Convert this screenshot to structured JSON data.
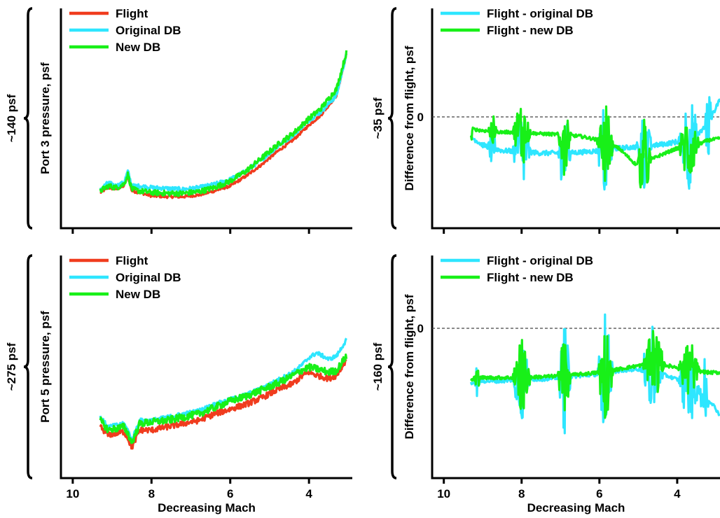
{
  "colors": {
    "flight": "#f03c1e",
    "original": "#2ee6ff",
    "new": "#18f018"
  },
  "chart_data": [
    {
      "id": "p3",
      "type": "line",
      "ylabel": "Port 3 pressure, psf",
      "scale_label": "~140 psf",
      "xlabel": "",
      "xlim": [
        10.3,
        2.9
      ],
      "ylim": [
        0,
        100
      ],
      "xticks": [
        10,
        8,
        6,
        4
      ],
      "xtick_labels": [
        "",
        "",
        "",
        ""
      ],
      "legend": [
        "Flight",
        "Original DB",
        "New DB"
      ],
      "series": [
        {
          "name": "Flight",
          "color_key": "flight",
          "noise": 0.8,
          "x": [
            9.3,
            9.1,
            8.9,
            8.7,
            8.6,
            8.5,
            8.3,
            8.0,
            7.6,
            7.2,
            6.8,
            6.4,
            6.0,
            5.6,
            5.2,
            4.8,
            4.4,
            4.0,
            3.7,
            3.5,
            3.3,
            3.05
          ],
          "y": [
            17,
            20,
            19,
            21,
            27,
            18,
            17,
            15,
            14.5,
            14.5,
            15.5,
            18,
            21,
            27,
            34,
            42,
            49,
            58,
            64,
            70,
            76,
            101
          ]
        },
        {
          "name": "Original DB",
          "color_key": "original",
          "noise": 1.2,
          "x": [
            9.3,
            9.1,
            8.9,
            8.7,
            8.6,
            8.5,
            8.3,
            8.0,
            7.6,
            7.2,
            6.8,
            6.4,
            6.0,
            5.6,
            5.2,
            4.8,
            4.4,
            4.0,
            3.7,
            3.5,
            3.3,
            3.05
          ],
          "y": [
            19,
            23,
            21,
            23,
            30,
            21,
            21,
            20,
            19.5,
            19,
            20,
            22,
            25,
            30,
            37,
            45,
            52,
            61,
            66,
            71,
            76,
            101
          ]
        },
        {
          "name": "New DB",
          "color_key": "new",
          "noise": 1.6,
          "x": [
            9.3,
            9.1,
            8.9,
            8.7,
            8.6,
            8.5,
            8.3,
            8.0,
            7.6,
            7.2,
            6.8,
            6.4,
            6.0,
            5.6,
            5.2,
            4.8,
            4.4,
            4.0,
            3.7,
            3.5,
            3.3,
            3.05
          ],
          "y": [
            18,
            21,
            20,
            22,
            28,
            19,
            18,
            17,
            16.5,
            16.5,
            17.5,
            20,
            24,
            30,
            38,
            46,
            53,
            62,
            68,
            74,
            80,
            102
          ]
        }
      ]
    },
    {
      "id": "d3",
      "type": "line",
      "ylabel": "Difference from flight, psf",
      "scale_label": "~35 psf",
      "zero_label": "0",
      "xlabel": "",
      "xlim": [
        10.3,
        2.9
      ],
      "ylim": [
        -100,
        100
      ],
      "xticks": [
        10,
        8,
        6,
        4
      ],
      "xtick_labels": [
        "",
        "",
        "",
        ""
      ],
      "legend": [
        "Flight - original DB",
        "Flight - new DB"
      ],
      "series": [
        {
          "name": "Flight - original DB",
          "color_key": "original",
          "noise": 3,
          "x": [
            9.3,
            9.0,
            8.5,
            8.0,
            7.5,
            7.0,
            6.5,
            6.0,
            5.5,
            5.0,
            4.5,
            4.0,
            3.5,
            3.2,
            2.9
          ],
          "y": [
            -18,
            -28,
            -35,
            -36,
            -38,
            -38,
            -37,
            -35,
            -32,
            -30,
            -28,
            -24,
            -18,
            0,
            28
          ],
          "bursts": [
            {
              "c": 8.75,
              "w": 0.12,
              "a": 30
            },
            {
              "c": 8.0,
              "w": 0.25,
              "a": 55
            },
            {
              "c": 6.9,
              "w": 0.18,
              "a": 60
            },
            {
              "c": 5.85,
              "w": 0.22,
              "a": 70
            },
            {
              "c": 4.85,
              "w": 0.2,
              "a": 55
            },
            {
              "c": 3.7,
              "w": 0.28,
              "a": 65
            },
            {
              "c": 3.2,
              "w": 0.1,
              "a": 60
            }
          ]
        },
        {
          "name": "Flight - new DB",
          "color_key": "new",
          "noise": 2,
          "x": [
            9.3,
            9.0,
            8.5,
            8.0,
            7.5,
            7.0,
            6.5,
            6.0,
            5.5,
            5.0,
            4.5,
            4.0,
            3.5,
            3.2,
            2.9
          ],
          "y": [
            -8,
            -10,
            -12,
            -12,
            -14,
            -15,
            -17,
            -22,
            -32,
            -55,
            -42,
            -32,
            -28,
            -22,
            -20
          ],
          "bursts": [
            {
              "c": 9.3,
              "w": 0.05,
              "a": 25
            },
            {
              "c": 8.75,
              "w": 0.12,
              "a": 25
            },
            {
              "c": 8.0,
              "w": 0.25,
              "a": 50
            },
            {
              "c": 6.9,
              "w": 0.18,
              "a": 55
            },
            {
              "c": 5.85,
              "w": 0.22,
              "a": 60
            },
            {
              "c": 4.85,
              "w": 0.2,
              "a": 60
            },
            {
              "c": 3.7,
              "w": 0.28,
              "a": 55
            }
          ]
        }
      ]
    },
    {
      "id": "p5",
      "type": "line",
      "ylabel": "Port 5 pressure, psf",
      "scale_label": "~275 psf",
      "xlabel": "Decreasing Mach",
      "xlim": [
        10.3,
        2.9
      ],
      "ylim": [
        0,
        100
      ],
      "xticks": [
        10,
        8,
        6,
        4
      ],
      "xtick_labels": [
        "10",
        "8",
        "6",
        "4"
      ],
      "legend": [
        "Flight",
        "Original DB",
        "New DB"
      ],
      "series": [
        {
          "name": "Flight",
          "color_key": "flight",
          "noise": 1.8,
          "x": [
            9.3,
            9.1,
            8.9,
            8.7,
            8.6,
            8.5,
            8.3,
            8.0,
            7.6,
            7.2,
            6.8,
            6.4,
            6.0,
            5.6,
            5.2,
            4.8,
            4.4,
            4.2,
            4.0,
            3.8,
            3.5,
            3.3,
            3.05
          ],
          "y": [
            24,
            19,
            20,
            21,
            17,
            11,
            22,
            22,
            24,
            26,
            28,
            32,
            35,
            38,
            42,
            47,
            51,
            55,
            58,
            56,
            54,
            56,
            66
          ]
        },
        {
          "name": "Original DB",
          "color_key": "original",
          "noise": 1.2,
          "x": [
            9.3,
            9.1,
            8.9,
            8.7,
            8.6,
            8.5,
            8.3,
            8.0,
            7.6,
            7.2,
            6.8,
            6.4,
            6.0,
            5.6,
            5.2,
            4.8,
            4.4,
            4.2,
            4.0,
            3.8,
            3.5,
            3.3,
            3.05
          ],
          "y": [
            30,
            24,
            25,
            26,
            22,
            16,
            28,
            28,
            30,
            32,
            34,
            38,
            41,
            44,
            48,
            53,
            58,
            62,
            67,
            70,
            66,
            68,
            78
          ]
        },
        {
          "name": "New DB",
          "color_key": "new",
          "noise": 2.2,
          "x": [
            9.3,
            9.1,
            8.9,
            8.7,
            8.6,
            8.5,
            8.3,
            8.0,
            7.6,
            7.2,
            6.8,
            6.4,
            6.0,
            5.6,
            5.2,
            4.8,
            4.4,
            4.2,
            4.0,
            3.8,
            3.5,
            3.3,
            3.05
          ],
          "y": [
            28,
            22,
            23,
            24,
            20,
            14,
            26,
            27,
            28,
            30,
            32,
            36,
            40,
            43,
            47,
            51,
            56,
            59,
            61,
            60,
            58,
            59,
            68
          ]
        }
      ]
    },
    {
      "id": "d5",
      "type": "line",
      "ylabel": "Difference from flight, psf",
      "scale_label": "~160  psf",
      "zero_label": "0",
      "xlabel": "Decreasing Mach",
      "xlim": [
        10.3,
        2.9
      ],
      "ylim": [
        -100,
        100
      ],
      "xticks": [
        10,
        8,
        6,
        4
      ],
      "xtick_labels": [
        "10",
        "8",
        "6",
        "4"
      ],
      "legend": [
        "Flight - original DB",
        "Flight - new DB"
      ],
      "series": [
        {
          "name": "Flight - original DB",
          "color_key": "original",
          "noise": 2,
          "x": [
            9.3,
            9.0,
            8.5,
            8.0,
            7.5,
            7.0,
            6.5,
            6.0,
            5.5,
            5.0,
            4.5,
            4.0,
            3.7,
            3.4,
            3.1,
            2.9
          ],
          "y": [
            -25,
            -22,
            -22,
            -20,
            -20,
            -18,
            -16,
            -14,
            -10,
            -8,
            -12,
            -20,
            -28,
            -36,
            -48,
            -62
          ],
          "bursts": [
            {
              "c": 9.15,
              "w": 0.08,
              "a": 20
            },
            {
              "c": 8.0,
              "w": 0.25,
              "a": 55
            },
            {
              "c": 6.9,
              "w": 0.18,
              "a": 70
            },
            {
              "c": 5.85,
              "w": 0.22,
              "a": 75
            },
            {
              "c": 4.65,
              "w": 0.3,
              "a": 55
            },
            {
              "c": 3.7,
              "w": 0.28,
              "a": 55
            },
            {
              "c": 3.3,
              "w": 0.12,
              "a": 50
            }
          ]
        },
        {
          "name": "Flight - new DB",
          "color_key": "new",
          "noise": 2,
          "x": [
            9.3,
            9.0,
            8.5,
            8.0,
            7.5,
            7.0,
            6.5,
            6.0,
            5.5,
            5.0,
            4.5,
            4.0,
            3.5,
            3.2,
            2.9
          ],
          "y": [
            -20,
            -18,
            -18,
            -18,
            -17,
            -16,
            -14,
            -12,
            -8,
            -4,
            -2,
            -6,
            -10,
            -12,
            -12
          ],
          "bursts": [
            {
              "c": 9.15,
              "w": 0.08,
              "a": 20
            },
            {
              "c": 8.0,
              "w": 0.25,
              "a": 50
            },
            {
              "c": 6.9,
              "w": 0.18,
              "a": 60
            },
            {
              "c": 5.85,
              "w": 0.22,
              "a": 65
            },
            {
              "c": 4.6,
              "w": 0.3,
              "a": 50
            },
            {
              "c": 3.7,
              "w": 0.28,
              "a": 45
            }
          ]
        }
      ]
    }
  ]
}
